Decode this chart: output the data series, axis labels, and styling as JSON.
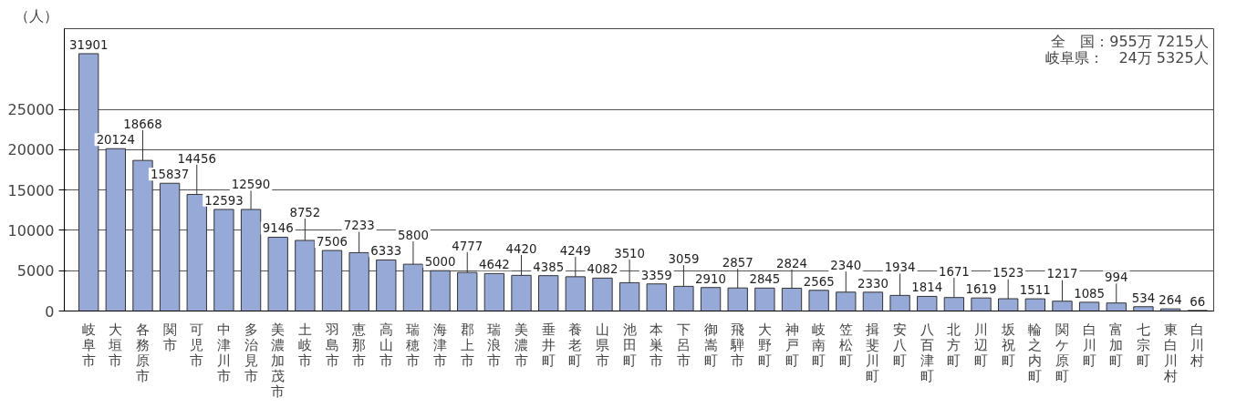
{
  "chart_data": {
    "type": "bar",
    "ylabel": "（人）",
    "categories": [
      "岐阜市",
      "大垣市",
      "各務原市",
      "関市",
      "可児市",
      "中津川市",
      "多治見市",
      "美濃加茂市",
      "土岐市",
      "羽島市",
      "恵那市",
      "高山市",
      "瑞穂市",
      "海津市",
      "郡上市",
      "瑞浪市",
      "美濃市",
      "垂井町",
      "養老町",
      "山県市",
      "池田町",
      "本巣市",
      "下呂市",
      "御嵩町",
      "飛騨市",
      "大野町",
      "神戸町",
      "岐南町",
      "笠松町",
      "揖斐川町",
      "安八町",
      "八百津町",
      "北方町",
      "川辺町",
      "坂祝町",
      "輪之内町",
      "関ケ原町",
      "白川町",
      "富加町",
      "七宗町",
      "東白川村",
      "白川村"
    ],
    "values": [
      31901,
      20124,
      18668,
      15837,
      14456,
      12593,
      12590,
      9146,
      8752,
      7506,
      7233,
      6333,
      5800,
      5000,
      4777,
      4642,
      4420,
      4385,
      4249,
      4082,
      3510,
      3359,
      3059,
      2910,
      2857,
      2845,
      2824,
      2565,
      2340,
      2330,
      1934,
      1814,
      1671,
      1619,
      1523,
      1511,
      1217,
      1085,
      994,
      534,
      264,
      66
    ],
    "color": "#97a9d6",
    "ylim": [
      0,
      35000
    ],
    "yticks": [
      0,
      5000,
      10000,
      15000,
      20000,
      25000
    ],
    "grid": "y",
    "data_labels": true,
    "annotations": [
      "全　国：955万 7215人",
      "岐阜県：　24万 5325人"
    ]
  }
}
